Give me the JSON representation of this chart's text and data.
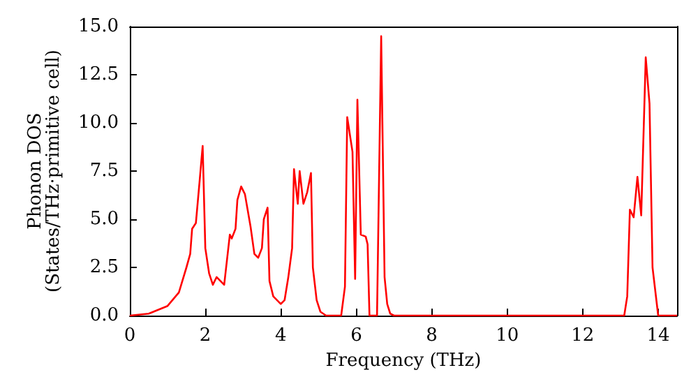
{
  "chart_data": {
    "type": "line",
    "xlabel": "Frequency (THz)",
    "ylabel": "Phonon DOS\n(States/THz·primitive cell)",
    "xlim": [
      0,
      14.5
    ],
    "xticks": [
      0,
      2,
      4,
      6,
      8,
      10,
      12,
      14
    ],
    "ylim": [
      0,
      15
    ],
    "yticks": [
      {
        "value": 0,
        "label": "0.0"
      },
      {
        "value": 2.5,
        "label": "2.5"
      },
      {
        "value": 5,
        "label": "5.0"
      },
      {
        "value": 7.5,
        "label": "7.5"
      },
      {
        "value": 10,
        "label": "10.0"
      },
      {
        "value": 12.5,
        "label": "12.5"
      },
      {
        "value": 15,
        "label": "15.0"
      }
    ],
    "grid": false,
    "marker": "none",
    "line_style": "solid",
    "series": [
      {
        "color": "#ff0000",
        "x": [
          0,
          0.5,
          1,
          1.3,
          1.5,
          1.6,
          1.65,
          1.75,
          1.85,
          1.93,
          2.0,
          2.1,
          2.2,
          2.3,
          2.4,
          2.5,
          2.65,
          2.7,
          2.8,
          2.85,
          2.95,
          3.05,
          3.2,
          3.3,
          3.4,
          3.5,
          3.55,
          3.65,
          3.7,
          3.8,
          4.0,
          4.1,
          4.2,
          4.3,
          4.35,
          4.45,
          4.5,
          4.6,
          4.7,
          4.8,
          4.85,
          4.95,
          5.05,
          5.2,
          5.6,
          5.7,
          5.76,
          5.9,
          5.97,
          6.03,
          6.12,
          6.25,
          6.3,
          6.35,
          6.55,
          6.66,
          6.75,
          6.82,
          6.9,
          7.0,
          13.1,
          13.18,
          13.25,
          13.35,
          13.45,
          13.55,
          13.67,
          13.77,
          13.85,
          14.0,
          14.5
        ],
        "values": [
          0,
          0.1,
          0.5,
          1.2,
          2.5,
          3.2,
          4.5,
          4.8,
          7.0,
          8.8,
          3.5,
          2.2,
          1.6,
          2.0,
          1.8,
          1.6,
          4.2,
          4.0,
          4.5,
          6.0,
          6.7,
          6.3,
          4.6,
          3.2,
          3.0,
          3.5,
          5.0,
          5.6,
          1.8,
          1.0,
          0.6,
          0.8,
          2.0,
          3.5,
          7.6,
          5.8,
          7.5,
          5.8,
          6.4,
          7.4,
          2.5,
          0.8,
          0.2,
          0,
          0,
          1.5,
          10.3,
          8.5,
          1.9,
          11.2,
          4.2,
          4.1,
          3.7,
          0,
          0,
          14.5,
          2.0,
          0.6,
          0.1,
          0,
          0,
          1.0,
          5.5,
          5.1,
          7.2,
          5.2,
          13.4,
          11,
          2.5,
          0,
          0
        ]
      }
    ]
  }
}
